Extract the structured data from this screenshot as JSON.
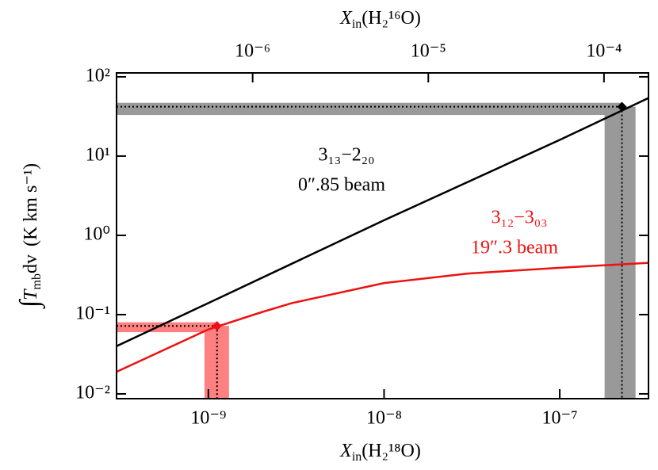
{
  "chart_data": {
    "type": "line",
    "xlabel": {
      "symbol": "X",
      "sub": "in",
      "rest": "(H₂¹⁸O)"
    },
    "x2label": {
      "symbol": "X",
      "sub": "in",
      "rest": "(H₂¹⁶O)"
    },
    "ylabel": {
      "integral": "∫",
      "symbol": "T",
      "sub": "mb",
      "rest": "dv",
      "units": "(K km s⁻¹)"
    },
    "xscale": "log",
    "yscale": "log",
    "xlim": [
      3e-10,
      3.2e-07
    ],
    "xticks": [
      {
        "value": 1e-09,
        "label": "10⁻⁹"
      },
      {
        "value": 1e-08,
        "label": "10⁻⁸"
      },
      {
        "value": 1e-07,
        "label": "10⁻⁷"
      }
    ],
    "x2lim": [
      1.68e-07,
      0.0001792
    ],
    "x2ticks": [
      {
        "value": 1e-06,
        "label": "10⁻⁶"
      },
      {
        "value": 1e-05,
        "label": "10⁻⁵"
      },
      {
        "value": 0.0001,
        "label": "10⁻⁴"
      }
    ],
    "ylim": [
      0.0087,
      112
    ],
    "yticks": [
      {
        "value": 0.01,
        "label": "10⁻²"
      },
      {
        "value": 0.1,
        "label": "10⁻¹"
      },
      {
        "value": 1,
        "label": "10⁰"
      },
      {
        "value": 10,
        "label": "10¹"
      },
      {
        "value": 100,
        "label": "10²"
      }
    ],
    "series": [
      {
        "name": "3₁₃−2₂₀",
        "beam": "0″.85 beam",
        "color": "#000000",
        "x": [
          3e-10,
          1e-09,
          1e-08,
          1e-07,
          3.2e-07
        ],
        "values": [
          0.04,
          0.14,
          1.55,
          16,
          54
        ],
        "marker": {
          "x": 2.26e-07,
          "y": 42,
          "xband": [
            1.8e-07,
            2.7e-07
          ],
          "yband": [
            33,
            47
          ],
          "band_color": "#999999"
        }
      },
      {
        "name": "3₁₂−3₀₃",
        "beam": "19″.3 beam",
        "color": "#ee1111",
        "x": [
          3e-10,
          1e-09,
          2e-09,
          3e-09,
          1e-08,
          3e-08,
          1e-07,
          3.2e-07
        ],
        "values": [
          0.019,
          0.065,
          0.107,
          0.14,
          0.25,
          0.33,
          0.39,
          0.45
        ],
        "marker": {
          "x": 1.12e-09,
          "y": 0.072,
          "xband": [
            9.5e-10,
            1.31e-09
          ],
          "yband": [
            0.06,
            0.08
          ],
          "band_color": "#ff8080"
        }
      }
    ]
  }
}
